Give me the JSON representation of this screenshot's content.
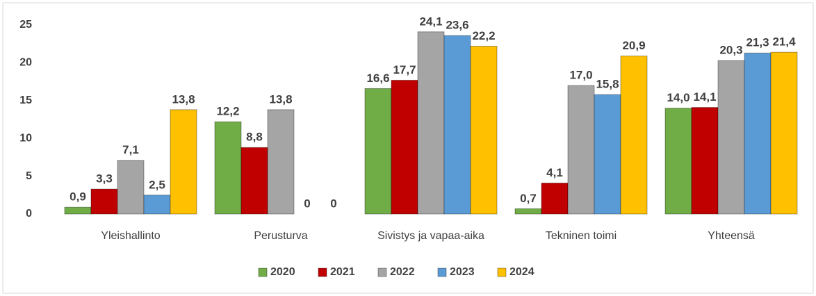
{
  "chart_data": {
    "type": "bar",
    "categories": [
      "Yleishallinto",
      "Perusturva",
      "Sivistys ja vapaa-aika",
      "Tekninen toimi",
      "Yhteensä"
    ],
    "series": [
      {
        "name": "2020",
        "color": "#70ad47",
        "values": [
          0.9,
          12.2,
          16.6,
          0.7,
          14.0
        ],
        "value_labels": [
          "0,9",
          "12,2",
          "16,6",
          "0,7",
          "14,0"
        ]
      },
      {
        "name": "2021",
        "color": "#c00000",
        "values": [
          3.3,
          8.8,
          17.7,
          4.1,
          14.1
        ],
        "value_labels": [
          "3,3",
          "8,8",
          "17,7",
          "4,1",
          "14,1"
        ]
      },
      {
        "name": "2022",
        "color": "#a5a5a5",
        "values": [
          7.1,
          13.8,
          24.1,
          17.0,
          20.3
        ],
        "value_labels": [
          "7,1",
          "13,8",
          "24,1",
          "17,0",
          "20,3"
        ]
      },
      {
        "name": "2023",
        "color": "#5b9bd5",
        "values": [
          2.5,
          0,
          23.6,
          15.8,
          21.3
        ],
        "value_labels": [
          "2,5",
          "0",
          "23,6",
          "15,8",
          "21,3"
        ]
      },
      {
        "name": "2024",
        "color": "#ffc000",
        "values": [
          13.8,
          0,
          22.2,
          20.9,
          21.4
        ],
        "value_labels": [
          "13,8",
          "0",
          "22,2",
          "20,9",
          "21,4"
        ]
      }
    ],
    "ylim": [
      0,
      25
    ],
    "yticks": [
      0,
      5,
      10,
      15,
      20,
      25
    ],
    "grid": false,
    "legend": "bottom"
  }
}
